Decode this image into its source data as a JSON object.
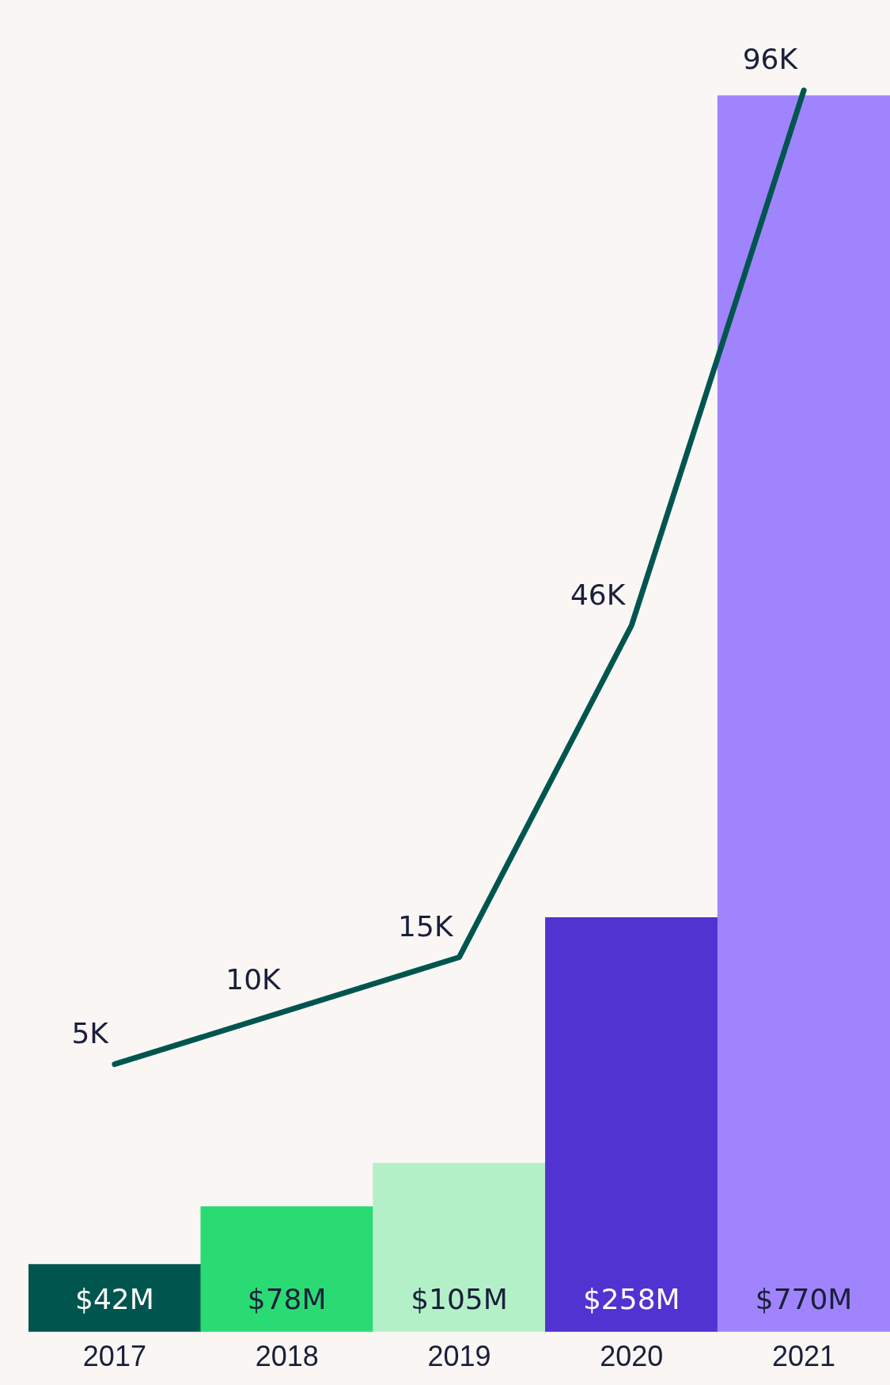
{
  "chart_data": {
    "type": "bar",
    "categories": [
      "2017",
      "2018",
      "2019",
      "2020",
      "2021"
    ],
    "series": [
      {
        "colors": [
          "#00564f",
          "#2adb74",
          "#b3f0c8",
          "#5033d1",
          "#a084fd"
        ],
        "values": [
          42,
          78,
          105,
          258,
          770
        ],
        "value_labels": [
          "$42M",
          "$78M",
          "$105M",
          "$258M",
          "$770M"
        ]
      },
      {
        "type": "line",
        "axis": "y2",
        "color": "#00564f",
        "values": [
          5,
          10,
          15,
          46,
          96
        ],
        "value_labels": [
          "5K",
          "10K",
          "15K",
          "46K",
          "96K"
        ],
        "marker": "none"
      }
    ],
    "relative": false,
    "legend": false,
    "grid": false
  }
}
